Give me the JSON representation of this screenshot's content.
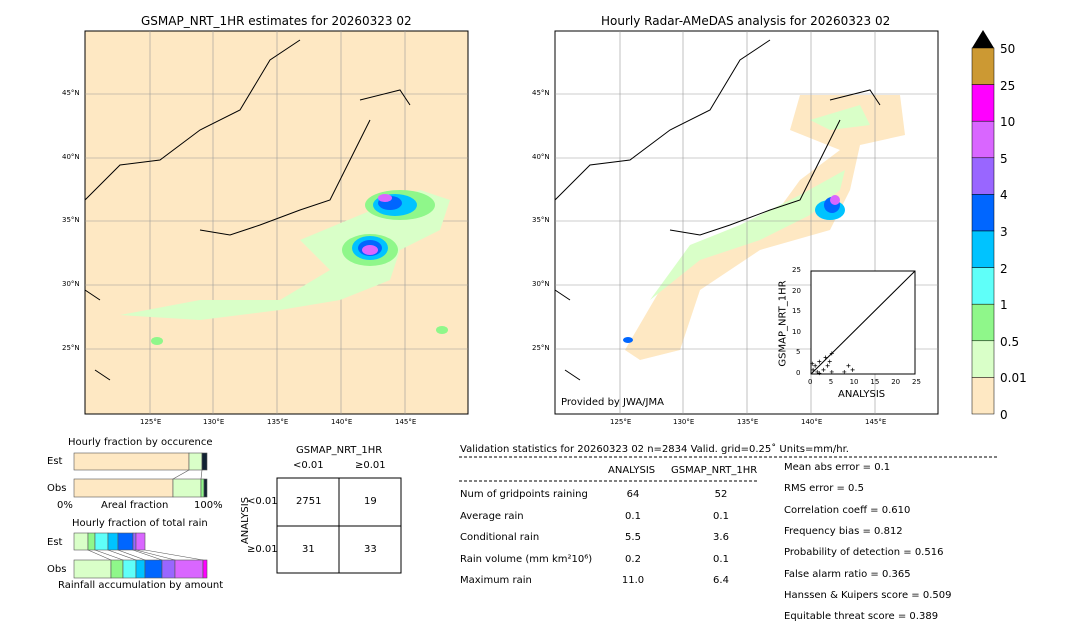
{
  "left_map": {
    "title": "GSMAP_NRT_1HR estimates for 20260323 02",
    "lon_ticks": [
      "125°E",
      "130°E",
      "135°E",
      "140°E",
      "145°E"
    ],
    "lat_ticks": [
      "45°N",
      "40°N",
      "35°N",
      "30°N",
      "25°N"
    ]
  },
  "right_map": {
    "title": "Hourly Radar-AMeDAS analysis for 20260323 02",
    "credit": "Provided by JWA/JMA",
    "lon_ticks": [
      "125°E",
      "130°E",
      "135°E",
      "140°E",
      "145°E"
    ],
    "lat_ticks": [
      "45°N",
      "40°N",
      "35°N",
      "30°N",
      "25°N"
    ]
  },
  "scatter": {
    "ylabel": "GSMAP_NRT_1HR",
    "xlabel": "ANALYSIS",
    "ticks": [
      "0",
      "5",
      "10",
      "15",
      "20",
      "25"
    ],
    "range": [
      0,
      25
    ]
  },
  "colorbar": {
    "labels": [
      "50",
      "25",
      "10",
      "5",
      "4",
      "3",
      "2",
      "1",
      "0.5",
      "0.01",
      "0"
    ],
    "colors": [
      "#cc9933",
      "#ff00ff",
      "#d966ff",
      "#9966ff",
      "#0066ff",
      "#00c3ff",
      "#5ffff9",
      "#8ff78a",
      "#d9ffc8",
      "#fee8c3"
    ],
    "extend_color": "#000000"
  },
  "occurrence": {
    "title": "Hourly fraction by occurence",
    "rows": [
      "Est",
      "Obs"
    ],
    "xlabel": "Areal fraction",
    "x0": "0%",
    "x1": "100%"
  },
  "total_rain": {
    "title": "Hourly fraction of total rain",
    "rows": [
      "Est",
      "Obs"
    ],
    "xlabel": "Rainfall accumulation by amount"
  },
  "contingency": {
    "title": "GSMAP_NRT_1HR",
    "col_headers": [
      "<0.01",
      "≥0.01"
    ],
    "row_label": "ANALYSIS",
    "row_headers": [
      "<0.01",
      "≥0.01"
    ],
    "cells": [
      [
        "2751",
        "19"
      ],
      [
        "31",
        "33"
      ]
    ]
  },
  "stats": {
    "header": "Validation statistics for 20260323 02  n=2834 Valid. grid=0.25˚ Units=mm/hr.",
    "col_headers": [
      "ANALYSIS",
      "GSMAP_NRT_1HR"
    ],
    "rows": [
      {
        "label": "Num of gridpoints raining",
        "a": "64",
        "g": "52"
      },
      {
        "label": "Average rain",
        "a": "0.1",
        "g": "0.1"
      },
      {
        "label": "Conditional rain",
        "a": "5.5",
        "g": "3.6"
      },
      {
        "label": "Rain volume (mm km²10⁶)",
        "a": "0.2",
        "g": "0.1"
      },
      {
        "label": "Maximum rain",
        "a": "11.0",
        "g": "6.4"
      }
    ],
    "scores": [
      "Mean abs error =    0.1",
      "RMS error =    0.5",
      "Correlation coeff =  0.610",
      "Frequency bias =  0.812",
      "Probability of detection =  0.516",
      "False alarm ratio =  0.365",
      "Hanssen & Kuipers score =  0.509",
      "Equitable threat score =  0.389"
    ]
  }
}
